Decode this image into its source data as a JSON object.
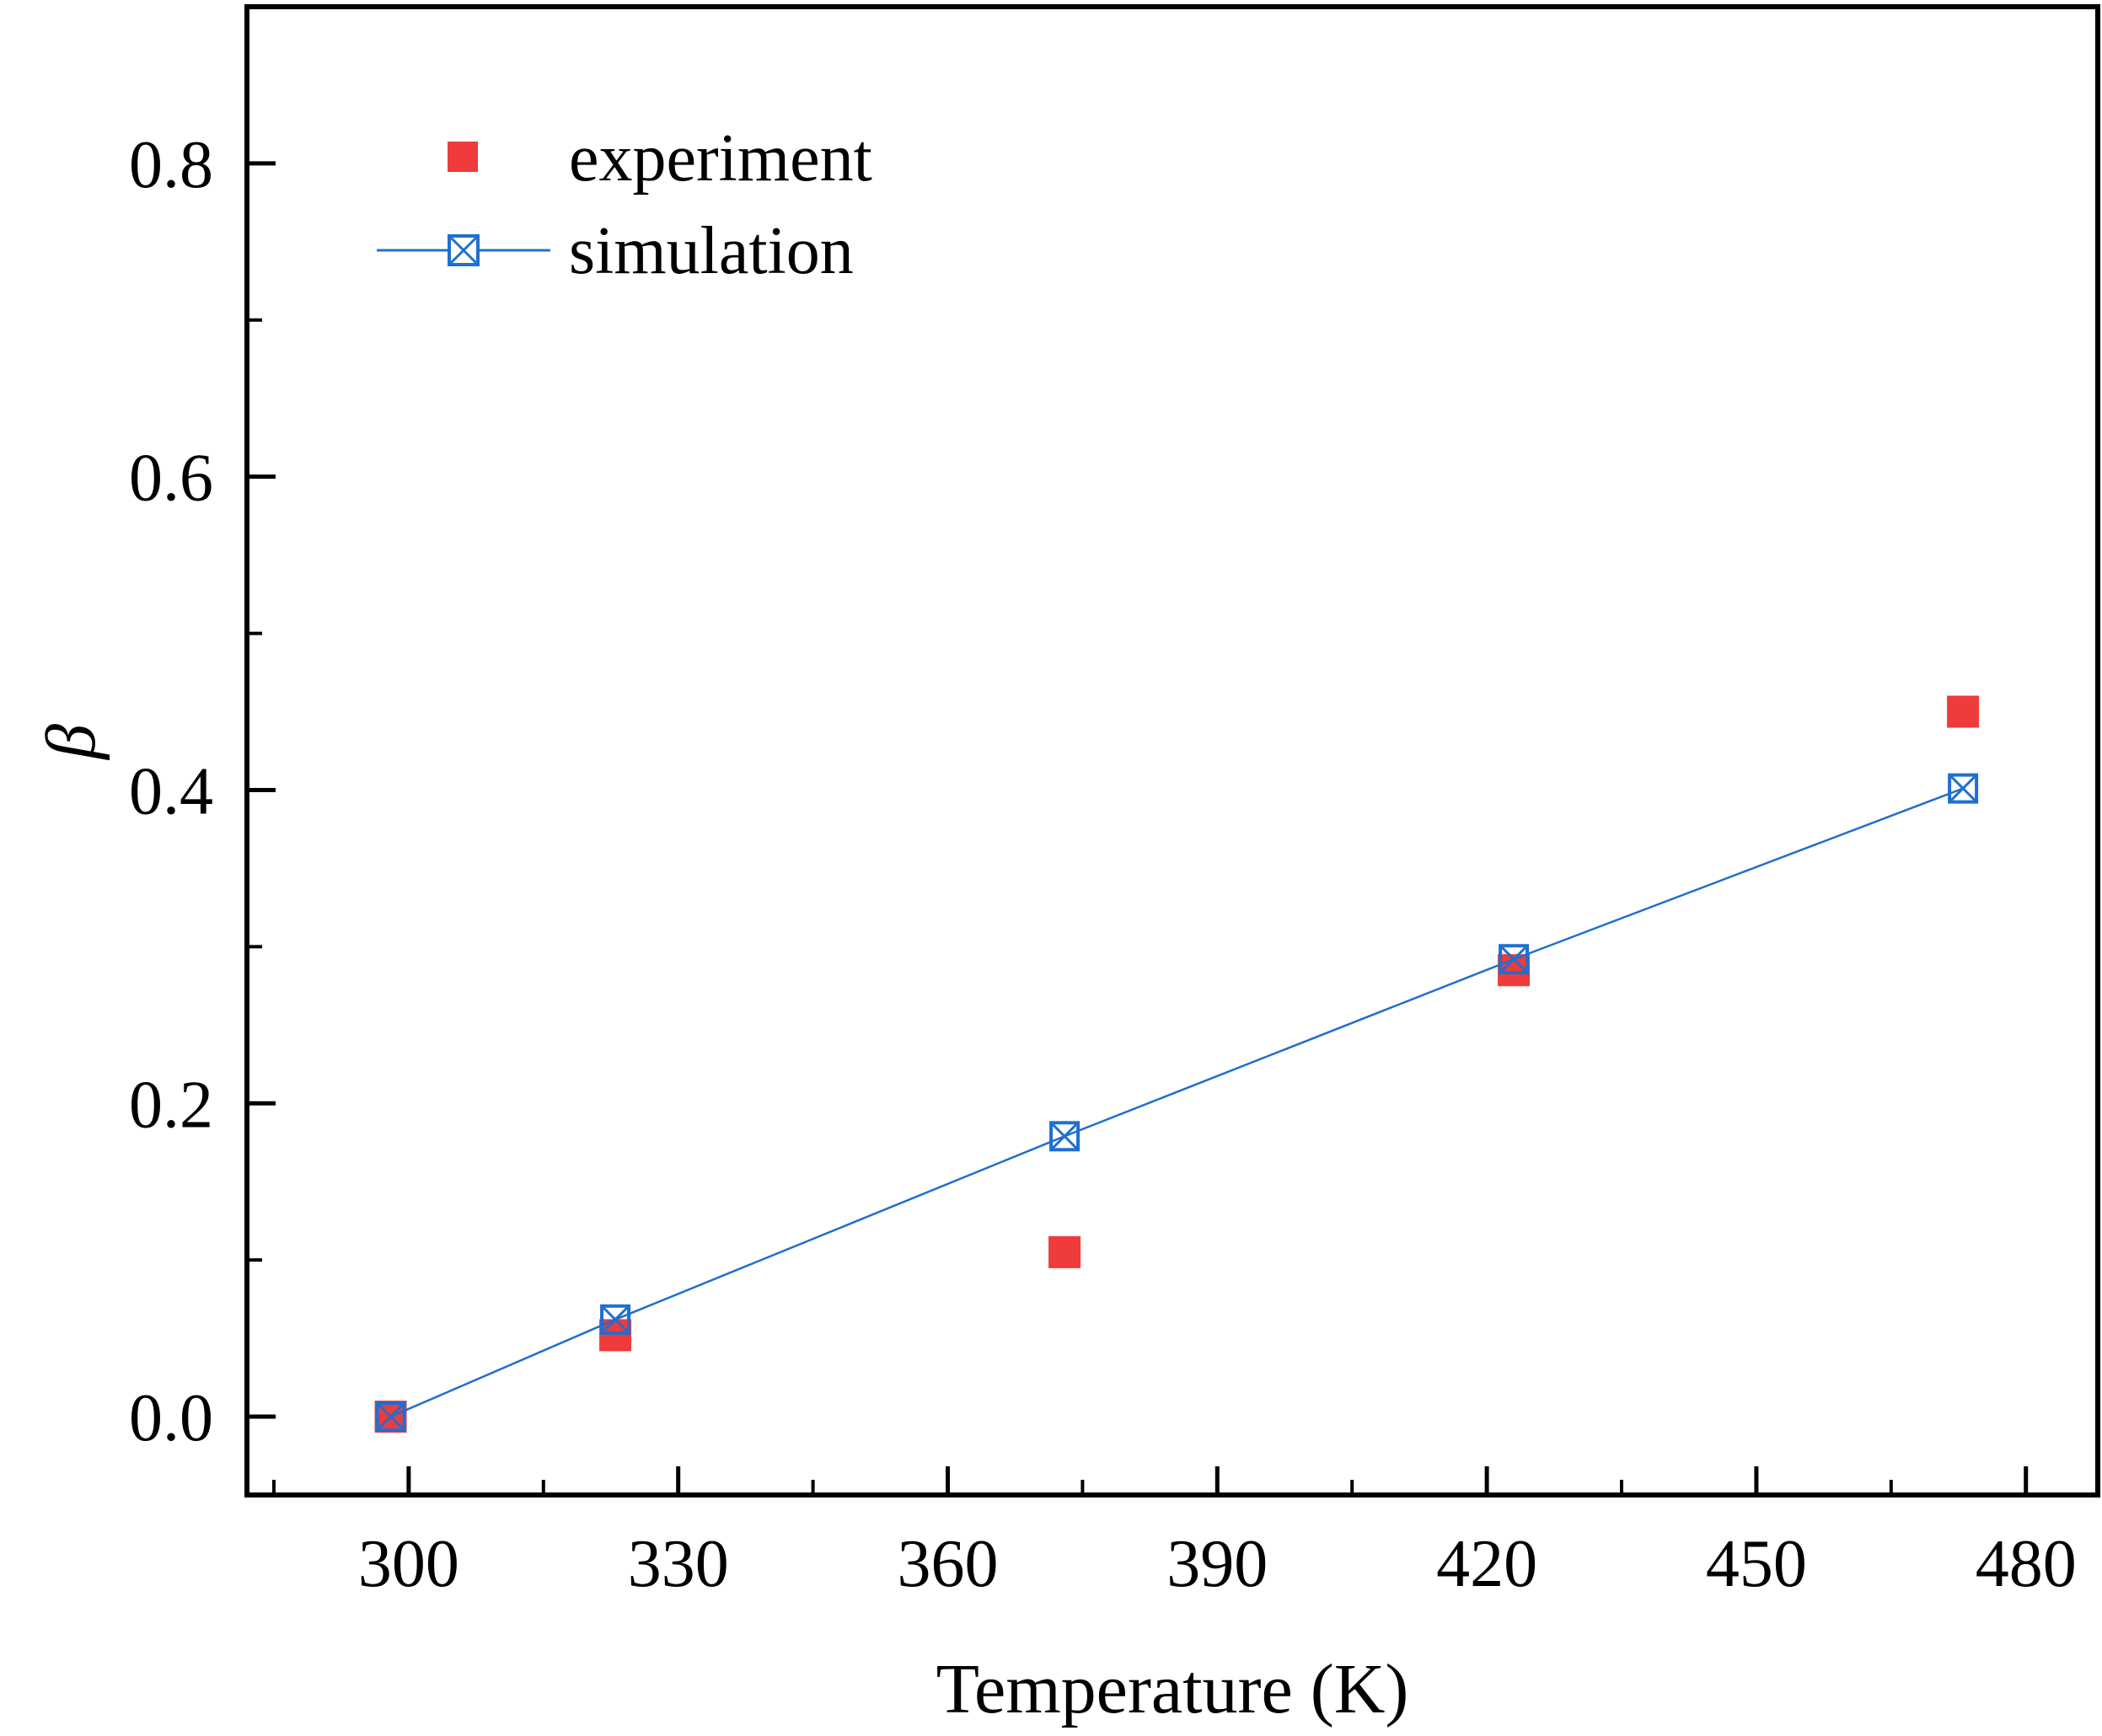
{
  "chart_data": {
    "type": "scatter",
    "xlabel": "Temperature (K)",
    "ylabel": "β",
    "xlim": [
      282,
      488
    ],
    "ylim": [
      -0.05,
      0.9
    ],
    "x_ticks": [
      300,
      330,
      360,
      390,
      420,
      450,
      480
    ],
    "y_ticks": [
      0.0,
      0.2,
      0.4,
      0.6,
      0.8
    ],
    "x_tick_labels": [
      "300",
      "330",
      "360",
      "390",
      "420",
      "450",
      "480"
    ],
    "y_tick_labels": [
      "0.0",
      "0.2",
      "0.4",
      "0.6",
      "0.8"
    ],
    "grid": false,
    "legend_position": "top-left",
    "series": [
      {
        "name": "experiment",
        "marker": "filled-square",
        "line": false,
        "color": "#ef3b3b",
        "points": [
          [
            298,
            0.0
          ],
          [
            323,
            0.052
          ],
          [
            373,
            0.105
          ],
          [
            423,
            0.285
          ],
          [
            473,
            0.45
          ]
        ]
      },
      {
        "name": "simulation",
        "marker": "boxed-x-square",
        "line": true,
        "color": "#1f6fd1",
        "points": [
          [
            298,
            0.0
          ],
          [
            323,
            0.062
          ],
          [
            373,
            0.179
          ],
          [
            423,
            0.292
          ],
          [
            473,
            0.401
          ]
        ]
      }
    ]
  }
}
